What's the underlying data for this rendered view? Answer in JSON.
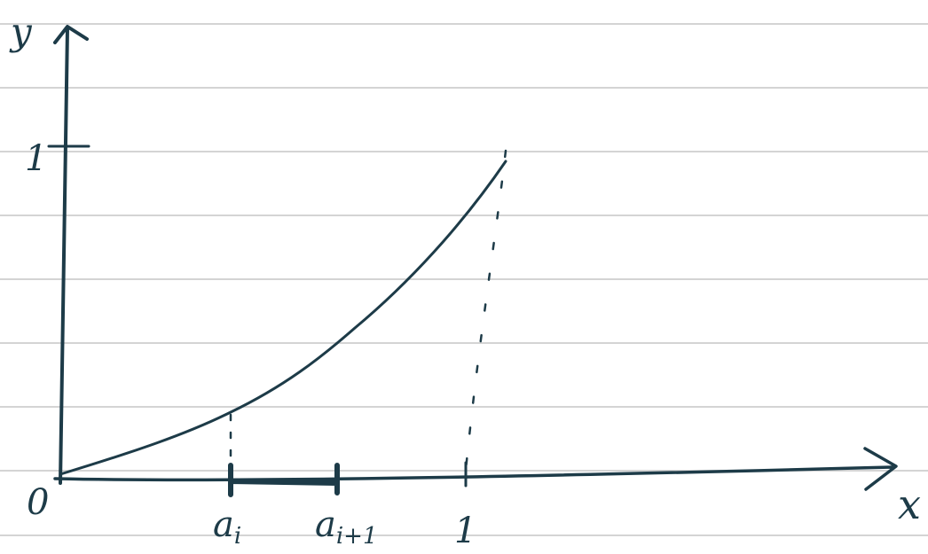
{
  "axes": {
    "y_label": "y",
    "x_label": "x",
    "origin": "0",
    "y_tick": "1"
  },
  "x_marks": [
    {
      "base": "a",
      "sub": "i"
    },
    {
      "base": "a",
      "sub": "i+1"
    },
    {
      "base": "1"
    }
  ]
}
